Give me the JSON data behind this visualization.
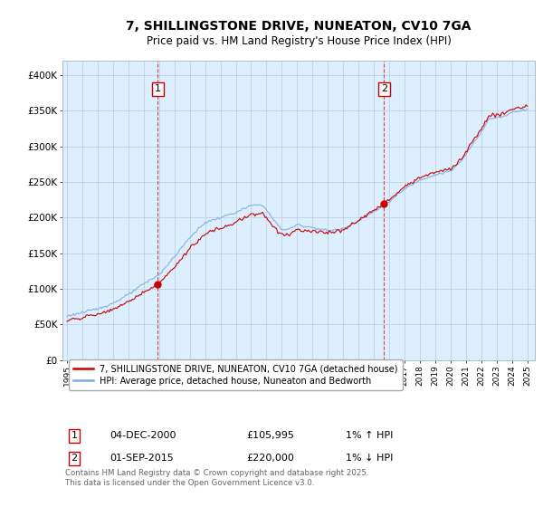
{
  "title": "7, SHILLINGSTONE DRIVE, NUNEATON, CV10 7GA",
  "subtitle": "Price paid vs. HM Land Registry's House Price Index (HPI)",
  "ylim": [
    0,
    420000
  ],
  "yticks": [
    0,
    50000,
    100000,
    150000,
    200000,
    250000,
    300000,
    350000,
    400000
  ],
  "ytick_labels": [
    "£0",
    "£50K",
    "£100K",
    "£150K",
    "£200K",
    "£250K",
    "£300K",
    "£350K",
    "£400K"
  ],
  "sale1_date": "04-DEC-2000",
  "sale1_price": 105995,
  "sale1_x": 2000.917,
  "sale1_hpi": "1% ↑ HPI",
  "sale2_date": "01-SEP-2015",
  "sale2_price": 220000,
  "sale2_x": 2015.667,
  "sale2_hpi": "1% ↓ HPI",
  "line_color_price": "#cc0000",
  "line_color_hpi": "#7aaddd",
  "dashed_color": "#cc0000",
  "marker_color": "#cc0000",
  "bg_color": "#ffffff",
  "chart_bg_color": "#ddeeff",
  "grid_color": "#bbccdd",
  "legend_label_price": "7, SHILLINGSTONE DRIVE, NUNEATON, CV10 7GA (detached house)",
  "legend_label_hpi": "HPI: Average price, detached house, Nuneaton and Bedworth",
  "footer": "Contains HM Land Registry data © Crown copyright and database right 2025.\nThis data is licensed under the Open Government Licence v3.0.",
  "xtick_years": [
    1995,
    1996,
    1997,
    1998,
    1999,
    2000,
    2001,
    2002,
    2003,
    2004,
    2005,
    2006,
    2007,
    2008,
    2009,
    2010,
    2011,
    2012,
    2013,
    2014,
    2015,
    2016,
    2017,
    2018,
    2019,
    2020,
    2021,
    2022,
    2023,
    2024,
    2025
  ],
  "xlim_left": 1994.7,
  "xlim_right": 2025.5
}
